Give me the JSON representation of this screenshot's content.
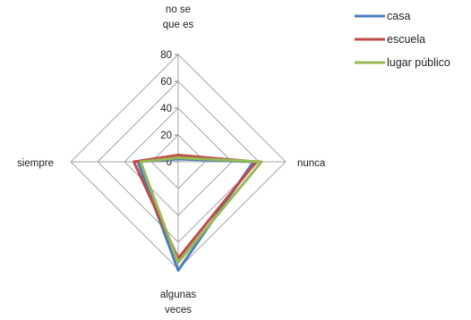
{
  "chart_data": {
    "type": "radar",
    "title": "",
    "axes": [
      {
        "label_lines": [
          "no se",
          "que es"
        ]
      },
      {
        "label_lines": [
          "nunca"
        ]
      },
      {
        "label_lines": [
          "algunas",
          "veces"
        ]
      },
      {
        "label_lines": [
          "siempre"
        ]
      }
    ],
    "r_range": [
      0,
      80
    ],
    "ticks": [
      0,
      20,
      40,
      60,
      80
    ],
    "tick_labels": [
      "0",
      "20",
      "40",
      "60",
      "80"
    ],
    "grid": true,
    "legend_position": "top-right",
    "series": [
      {
        "name": "casa",
        "color": "#4a7ebb",
        "values": [
          2,
          56,
          81,
          30
        ]
      },
      {
        "name": "escuela",
        "color": "#be4b48",
        "values": [
          5,
          58,
          72,
          33
        ]
      },
      {
        "name": "lugar público",
        "color": "#98b954",
        "values": [
          3,
          62,
          75,
          28
        ]
      }
    ]
  }
}
